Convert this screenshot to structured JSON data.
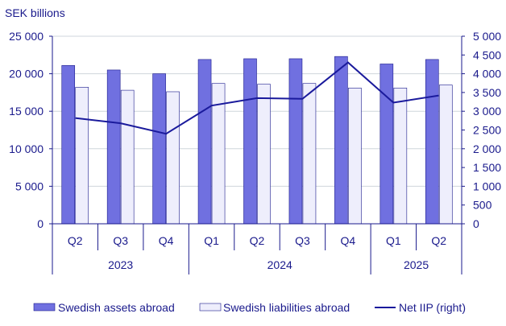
{
  "chart_data": {
    "type": "bar",
    "unit_label": "SEK billions",
    "categories": [
      "Q2",
      "Q3",
      "Q4",
      "Q1",
      "Q2",
      "Q3",
      "Q4",
      "Q1",
      "Q2"
    ],
    "year_groups": [
      {
        "label": "2023",
        "start": 0,
        "end": 2
      },
      {
        "label": "2024",
        "start": 3,
        "end": 6
      },
      {
        "label": "2025",
        "start": 7,
        "end": 8
      }
    ],
    "series": [
      {
        "name": "Swedish assets abroad",
        "type": "bar",
        "axis": "left",
        "color": "#7070e0",
        "values": [
          21100,
          20500,
          20000,
          21900,
          22000,
          22000,
          22300,
          21300,
          21900
        ]
      },
      {
        "name": "Swedish liabilities abroad",
        "type": "bar",
        "axis": "left",
        "color": "#eeeefc",
        "values": [
          18200,
          17800,
          17600,
          18700,
          18600,
          18700,
          18100,
          18100,
          18500
        ]
      },
      {
        "name": "Net IIP (right)",
        "type": "line",
        "axis": "right",
        "color": "#1a1a9c",
        "values": [
          2820,
          2680,
          2400,
          3150,
          3350,
          3330,
          4300,
          3230,
          3420
        ]
      }
    ],
    "y_left": {
      "min": 0,
      "max": 25000,
      "ticks": [
        0,
        5000,
        10000,
        15000,
        20000,
        25000
      ],
      "tick_labels": [
        "0",
        "5 000",
        "10 000",
        "15 000",
        "20 000",
        "25 000"
      ]
    },
    "y_right": {
      "min": 0,
      "max": 5000,
      "ticks": [
        0,
        500,
        1000,
        1500,
        2000,
        2500,
        3000,
        3500,
        4000,
        4500,
        5000
      ],
      "tick_labels": [
        "0",
        "500",
        "1 000",
        "1 500",
        "2 000",
        "2 500",
        "3 000",
        "3 500",
        "4 000",
        "4 500",
        "5 000"
      ]
    },
    "grid": true,
    "legend_position": "bottom"
  }
}
